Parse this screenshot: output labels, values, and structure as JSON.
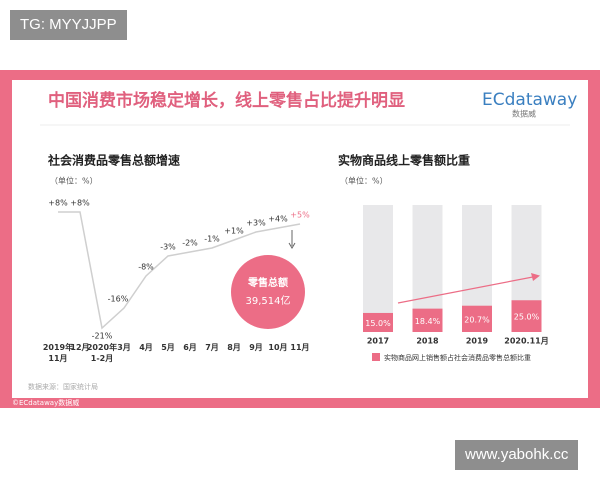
{
  "watermarks": [
    "TG: MYYJJPP",
    "www.yabohk.cc"
  ],
  "header": {
    "title": "中国消费市场稳定增长，线上零售占比提升明显",
    "logo": "ECdataway",
    "logo_sub": "数据威"
  },
  "source": "数据来源：国家统计局",
  "footer": "©ECdataway数据威",
  "chart_data": [
    {
      "type": "line",
      "title": "社会消费品零售总额增速",
      "subtitle": "（单位：%）",
      "categories": [
        "2019年\n11月",
        "12月",
        "2020年\n1-2月",
        "3月",
        "4月",
        "5月",
        "6月",
        "7月",
        "8月",
        "9月",
        "10月",
        "11月"
      ],
      "values": [
        8,
        8,
        -21,
        -16,
        -8,
        -3,
        -2,
        -1,
        1,
        3,
        4,
        5
      ],
      "value_labels": [
        "+8%",
        "+8%",
        "-21%",
        "-16%",
        "-8%",
        "-3%",
        "-2%",
        "-1%",
        "+1%",
        "+3%",
        "+4%",
        "+5%"
      ],
      "color": "#cfcfcf",
      "annotation": {
        "label": "零售总额",
        "value": "39,514亿",
        "color": "#ec6d86"
      }
    },
    {
      "type": "bar",
      "title": "实物商品线上零售额比重",
      "subtitle": "（单位：%）",
      "categories": [
        "2017",
        "2018",
        "2019",
        "2020.11月"
      ],
      "series": [
        {
          "name": "实物商品网上销售额占社会消费品零售总额比重",
          "color": "#ec6d86",
          "values": [
            15.0,
            18.4,
            20.7,
            25.0
          ],
          "value_labels": [
            "15.0%",
            "18.4%",
            "20.7%",
            "25.0%"
          ]
        }
      ],
      "ylim": [
        0,
        100
      ]
    }
  ]
}
